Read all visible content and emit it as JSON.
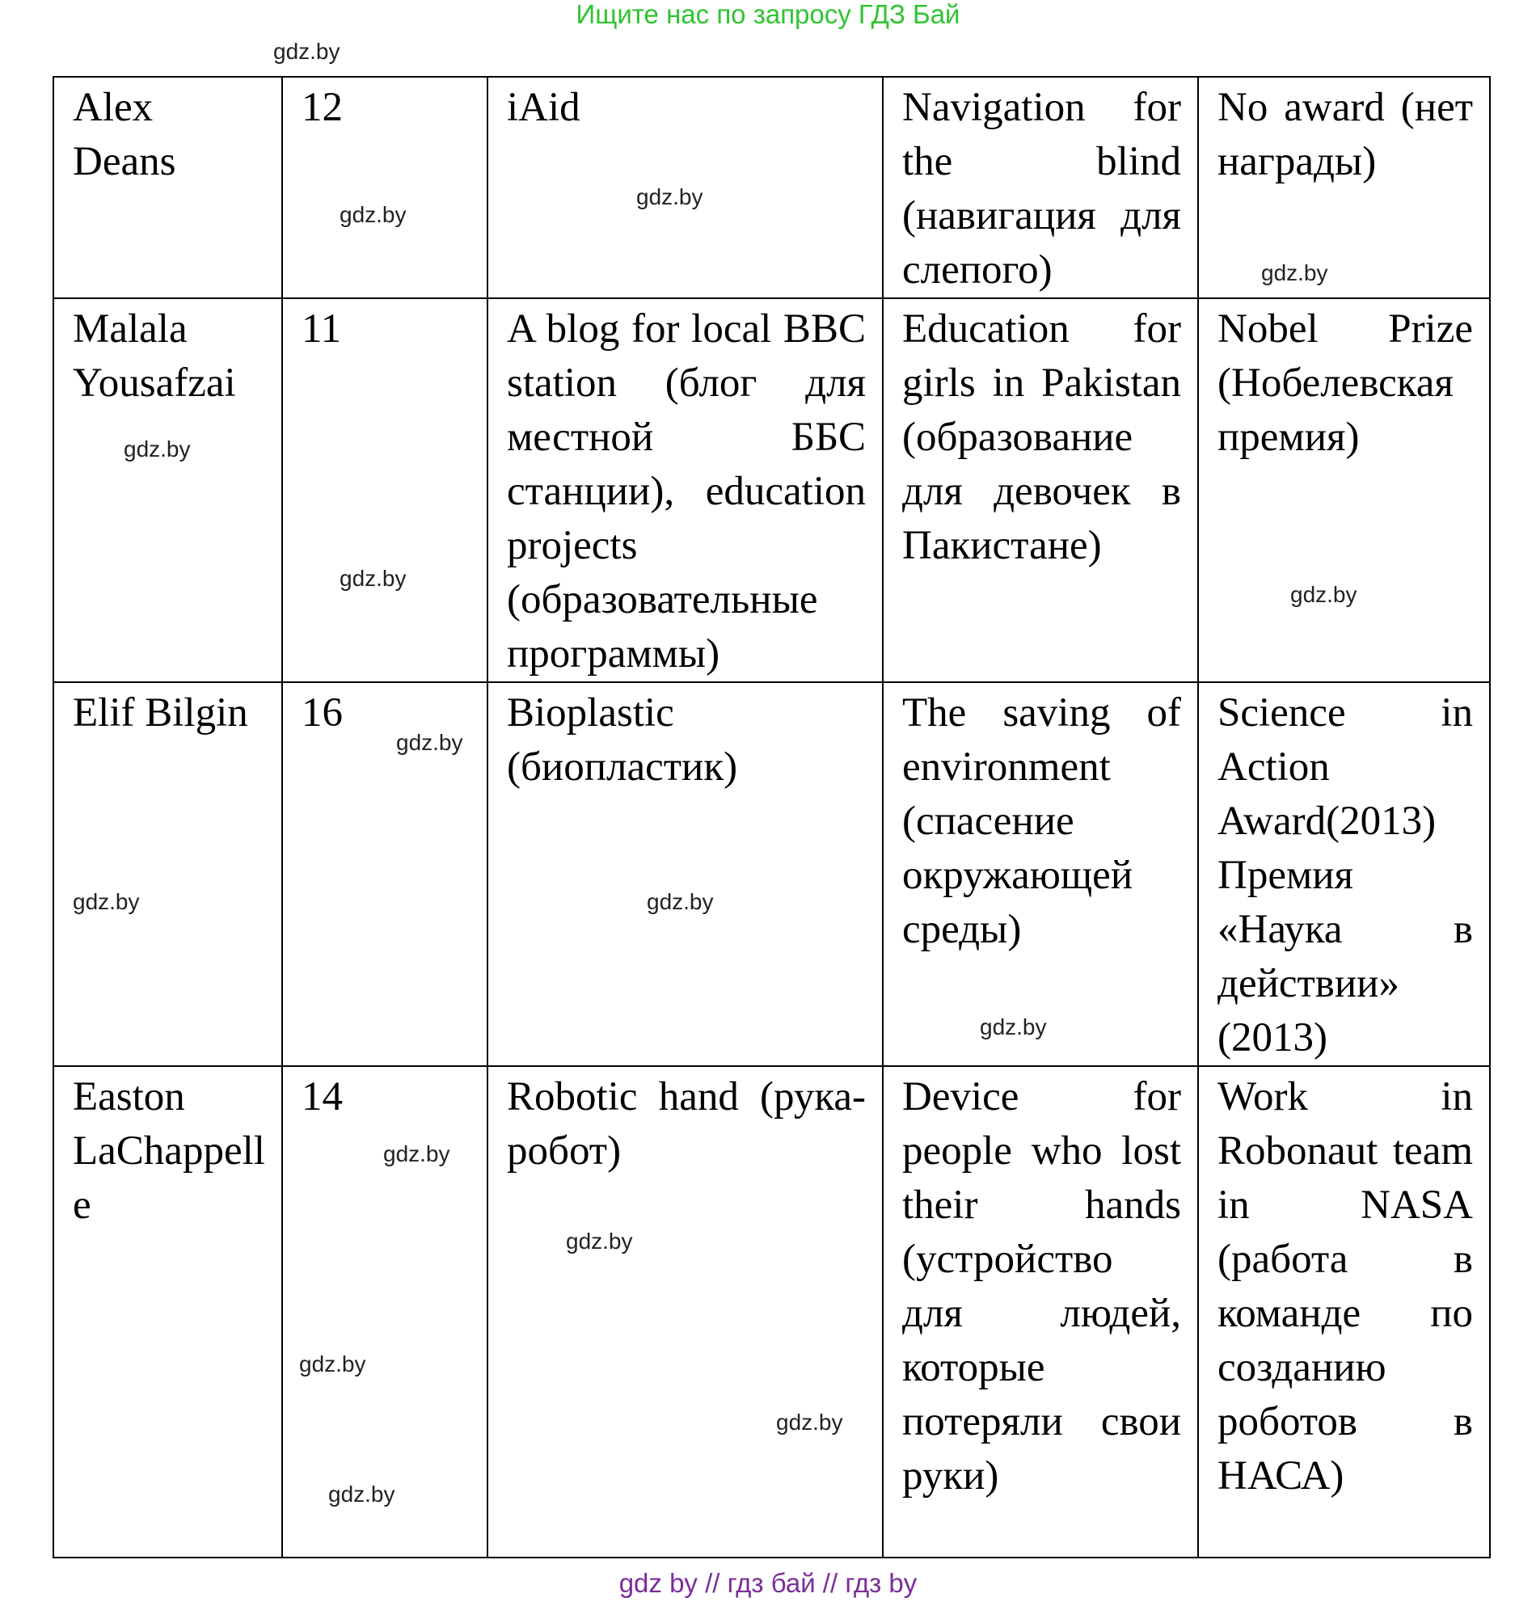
{
  "header_banner": "Ищите нас по запросу ГДЗ Бай",
  "footer_banner": "gdz by  //  гдз бай  //  гдз by",
  "watermark": "gdz.by",
  "colors": {
    "header": "#2fc42f",
    "footer": "#7b2d9c"
  },
  "rows": [
    {
      "name": "Alex Deans",
      "age": "12",
      "invention": "iAid",
      "purpose": "Navigation for the blind (навигация для слепого)",
      "award": "No award (нет награды)"
    },
    {
      "name": "Malala Yousafzai",
      "age": "11",
      "invention": "A blog for local BBC station (блог для местной ББС станции), education projects (образовательные программы)",
      "purpose": "Education for girls in Pakistan (образование для девочек в Пакистане)",
      "award": "Nobel Prize (Нобелевская премия)"
    },
    {
      "name": "Elif Bilgin",
      "age": "16",
      "invention": "Bioplastic (биопластик)",
      "purpose": "The saving of environment (спасение окружающей среды)",
      "award": "Science in Action Award(2013) Премия «Наука в действии» (2013)"
    },
    {
      "name": "Easton LaChappelle",
      "age": "14",
      "invention": "Robotic hand (рука-робот)",
      "purpose": "Device for people who lost their hands (устройство для людей, которые потеряли свои руки)",
      "award": "Work in Robonaut team in NASA (работа в команде по созданию роботов в НАСА)"
    }
  ]
}
